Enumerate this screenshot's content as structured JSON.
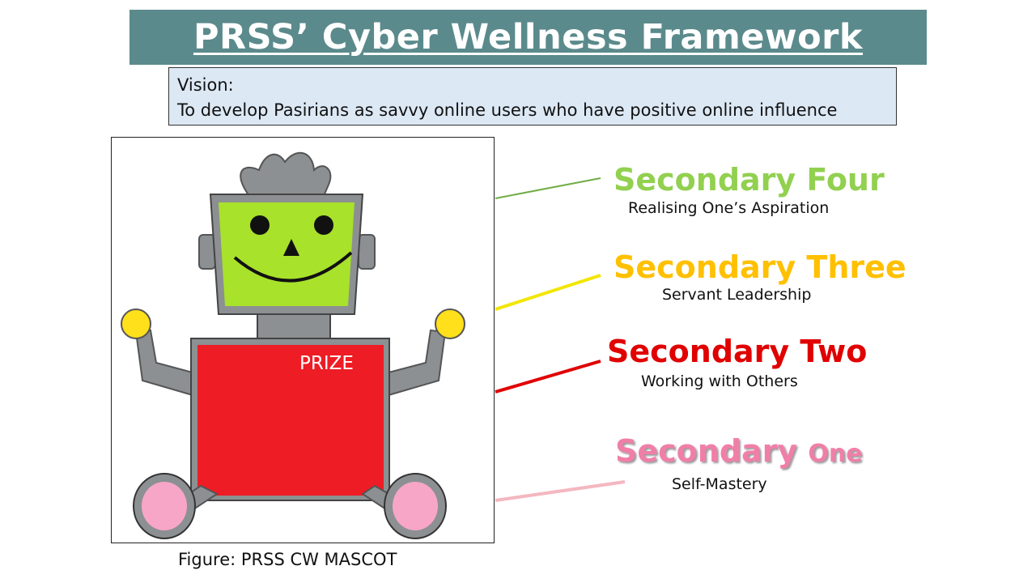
{
  "title": "PRSS’ Cyber Wellness Framework",
  "vision": {
    "label": "Vision:",
    "text": "To develop Pasirians as savvy online users who have positive online influence"
  },
  "mascot": {
    "shirt_text": "PRIZE",
    "caption": "Figure: PRSS CW MASCOT",
    "colors": {
      "face": "#a8e22a",
      "body": "#ee1c25",
      "metal": "#8c9092",
      "hands": "#ffe01a",
      "feet": "#f7a6c8"
    }
  },
  "levels": [
    {
      "title": "Secondary Four",
      "subtitle": "Realising One’s Aspiration",
      "color": "#92d050"
    },
    {
      "title": "Secondary Three",
      "subtitle": "Servant Leadership",
      "color": "#ffc000"
    },
    {
      "title": "Secondary Two",
      "subtitle": "Working with Others",
      "color": "#e00000"
    },
    {
      "title_main": "Secondary",
      "title_small": "One",
      "subtitle": "Self-Mastery",
      "color": "#f07fa8"
    }
  ]
}
